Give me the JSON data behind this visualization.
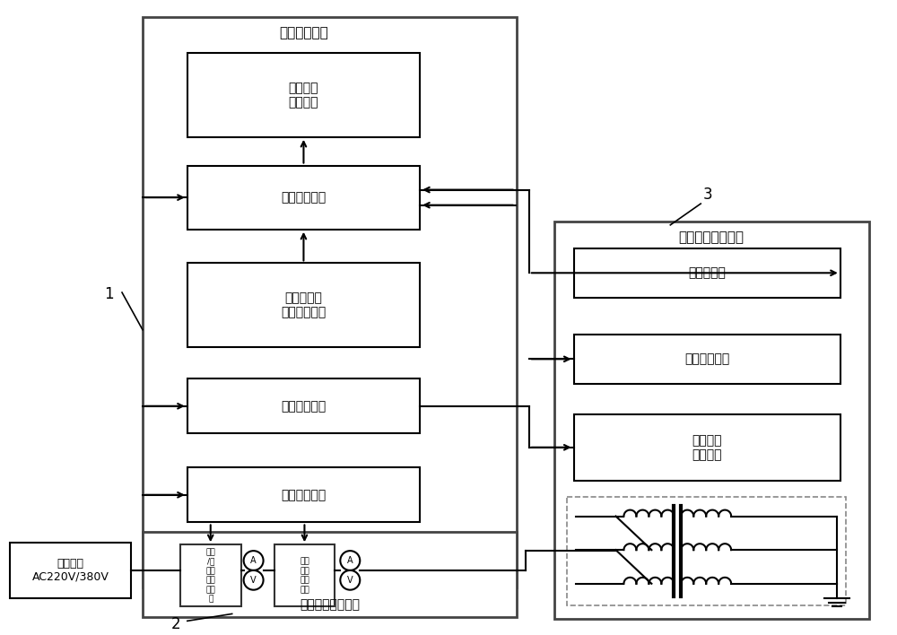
{
  "bg_color": "#ffffff",
  "line_color": "#000000",
  "figsize": [
    10.0,
    7.08
  ],
  "dpi": 100,
  "labels": {
    "control_module": "控制系统模块",
    "data_analysis": "数据分析\n处理单元",
    "param_collect": "参数采集单元",
    "temp_measure": "变压器绕组\n温度测量单元",
    "pressure_ctrl": "气压控制单元",
    "current_ctrl": "变流控制单元",
    "pressure_module": "气压变压处理模块",
    "vacuum_tank": "真空罐单元",
    "pressure_monitor": "气压监测单元",
    "pressure_exec": "气压控制\n执行单元",
    "power_switch_module": "变流功率开关模块",
    "rectifier": "三相\n/单\n项整\n流功\n率单\n元",
    "power_output": "三项\n功率\n输出\n单元",
    "power_supply": "供电电源\nAC220V/380V",
    "label1": "1",
    "label2": "2",
    "label3": "3"
  }
}
